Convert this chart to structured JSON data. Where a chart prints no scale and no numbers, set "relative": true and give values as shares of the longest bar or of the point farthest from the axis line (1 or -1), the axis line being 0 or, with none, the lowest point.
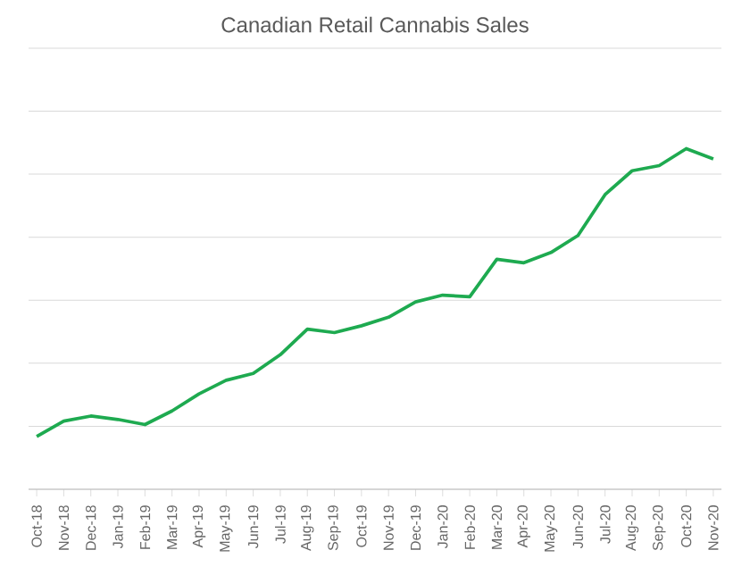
{
  "chart_data": {
    "type": "line",
    "title": "Canadian Retail Cannabis Sales",
    "categories": [
      "Oct-18",
      "Nov-18",
      "Dec-18",
      "Jan-19",
      "Feb-19",
      "Mar-19",
      "Apr-19",
      "May-19",
      "Jun-19",
      "Jul-19",
      "Aug-19",
      "Sep-19",
      "Oct-19",
      "Nov-19",
      "Dec-19",
      "Jan-20",
      "Feb-20",
      "Mar-20",
      "Apr-20",
      "May-20",
      "Jun-20",
      "Jul-20",
      "Aug-20",
      "Sep-20",
      "Oct-20",
      "Nov-20"
    ],
    "values": [
      0.155,
      0.2,
      0.215,
      0.205,
      0.19,
      0.23,
      0.28,
      0.32,
      0.34,
      0.395,
      0.47,
      0.46,
      0.48,
      0.505,
      0.55,
      0.57,
      0.565,
      0.675,
      0.665,
      0.695,
      0.745,
      0.865,
      0.935,
      0.95,
      1,
      0.97
    ],
    "color": "#1eaa50",
    "relative": true,
    "grid": "y"
  }
}
